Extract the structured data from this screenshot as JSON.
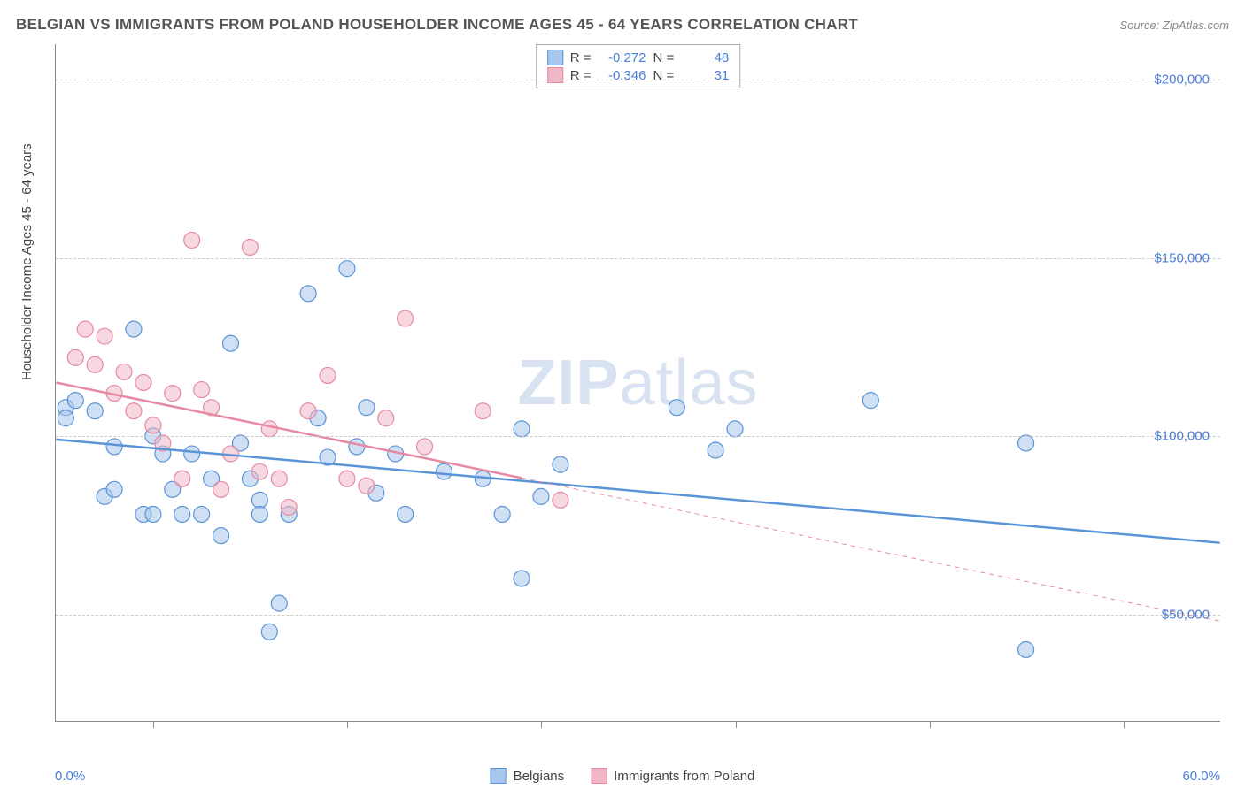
{
  "title": "BELGIAN VS IMMIGRANTS FROM POLAND HOUSEHOLDER INCOME AGES 45 - 64 YEARS CORRELATION CHART",
  "source": "Source: ZipAtlas.com",
  "watermark_bold": "ZIP",
  "watermark_rest": "atlas",
  "chart": {
    "type": "scatter",
    "xlim": [
      0,
      60
    ],
    "ylim": [
      20000,
      210000
    ],
    "x_start_label": "0.0%",
    "x_end_label": "60.0%",
    "y_ticks": [
      50000,
      100000,
      150000,
      200000
    ],
    "y_tick_labels": [
      "$50,000",
      "$100,000",
      "$150,000",
      "$200,000"
    ],
    "x_ticks": [
      5,
      15,
      25,
      35,
      45,
      55
    ],
    "ylabel": "Householder Income Ages 45 - 64 years",
    "background_color": "#ffffff",
    "grid_color": "#cccccc",
    "axis_color": "#888888",
    "tick_label_color": "#4a7fd8",
    "marker_radius": 9,
    "marker_opacity": 0.55,
    "line_width": 2.5
  },
  "series": [
    {
      "name": "Belgians",
      "color_fill": "#a8c7ec",
      "color_stroke": "#5a94d6",
      "R": "-0.272",
      "N": "48",
      "trend": {
        "x1": 0,
        "y1": 99000,
        "x2": 60,
        "y2": 70000,
        "dash_after_x": null
      },
      "points": [
        [
          0.5,
          108000
        ],
        [
          0.5,
          105000
        ],
        [
          1,
          110000
        ],
        [
          2,
          107000
        ],
        [
          2.5,
          83000
        ],
        [
          3,
          97000
        ],
        [
          3,
          85000
        ],
        [
          4,
          130000
        ],
        [
          4.5,
          78000
        ],
        [
          5,
          100000
        ],
        [
          5,
          78000
        ],
        [
          5.5,
          95000
        ],
        [
          6,
          85000
        ],
        [
          6.5,
          78000
        ],
        [
          7,
          95000
        ],
        [
          7.5,
          78000
        ],
        [
          8,
          88000
        ],
        [
          8.5,
          72000
        ],
        [
          9,
          126000
        ],
        [
          9.5,
          98000
        ],
        [
          10,
          88000
        ],
        [
          10.5,
          82000
        ],
        [
          10.5,
          78000
        ],
        [
          11,
          45000
        ],
        [
          11.5,
          53000
        ],
        [
          12,
          78000
        ],
        [
          13,
          140000
        ],
        [
          13.5,
          105000
        ],
        [
          14,
          94000
        ],
        [
          15,
          147000
        ],
        [
          15.5,
          97000
        ],
        [
          16,
          108000
        ],
        [
          16.5,
          84000
        ],
        [
          17.5,
          95000
        ],
        [
          18,
          78000
        ],
        [
          20,
          90000
        ],
        [
          22,
          88000
        ],
        [
          23,
          78000
        ],
        [
          24,
          60000
        ],
        [
          24,
          102000
        ],
        [
          25,
          83000
        ],
        [
          26,
          92000
        ],
        [
          32,
          108000
        ],
        [
          34,
          96000
        ],
        [
          35,
          102000
        ],
        [
          42,
          110000
        ],
        [
          50,
          98000
        ],
        [
          50,
          40000
        ]
      ]
    },
    {
      "name": "Immigrants from Poland",
      "color_fill": "#f0b8c6",
      "color_stroke": "#e68aa3",
      "R": "-0.346",
      "N": "31",
      "trend": {
        "x1": 0,
        "y1": 115000,
        "x2": 60,
        "y2": 48000,
        "dash_after_x": 24
      },
      "points": [
        [
          1,
          122000
        ],
        [
          1.5,
          130000
        ],
        [
          2,
          120000
        ],
        [
          2.5,
          128000
        ],
        [
          3,
          112000
        ],
        [
          3.5,
          118000
        ],
        [
          4,
          107000
        ],
        [
          4.5,
          115000
        ],
        [
          5,
          103000
        ],
        [
          5.5,
          98000
        ],
        [
          6,
          112000
        ],
        [
          6.5,
          88000
        ],
        [
          7,
          155000
        ],
        [
          7.5,
          113000
        ],
        [
          8,
          108000
        ],
        [
          8.5,
          85000
        ],
        [
          9,
          95000
        ],
        [
          10,
          153000
        ],
        [
          10.5,
          90000
        ],
        [
          11,
          102000
        ],
        [
          11.5,
          88000
        ],
        [
          12,
          80000
        ],
        [
          13,
          107000
        ],
        [
          14,
          117000
        ],
        [
          15,
          88000
        ],
        [
          16,
          86000
        ],
        [
          17,
          105000
        ],
        [
          18,
          133000
        ],
        [
          19,
          97000
        ],
        [
          22,
          107000
        ],
        [
          26,
          82000
        ]
      ]
    }
  ],
  "stats_labels": {
    "R": "R =",
    "N": "N ="
  },
  "legend": {
    "s1": "Belgians",
    "s2": "Immigrants from Poland"
  }
}
